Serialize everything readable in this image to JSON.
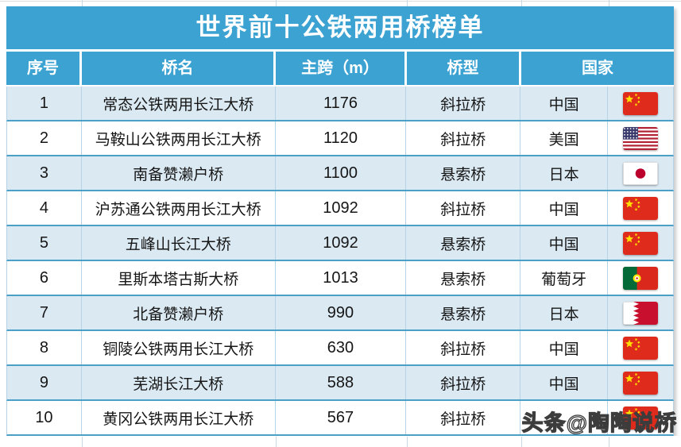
{
  "chart_data": {
    "type": "table",
    "title": "世界前十公铁两用桥榜单",
    "columns": [
      "序号",
      "桥名",
      "主跨（m）",
      "桥型",
      "国家"
    ],
    "rows": [
      {
        "rank": 1,
        "name": "常态公铁两用长江大桥",
        "span_m": 1176,
        "bridge_type": "斜拉桥",
        "country": "中国",
        "flag": "china-flag"
      },
      {
        "rank": 2,
        "name": "马鞍山公铁两用长江大桥",
        "span_m": 1120,
        "bridge_type": "斜拉桥",
        "country": "美国",
        "flag": "usa-flag"
      },
      {
        "rank": 3,
        "name": "南备赞濑户桥",
        "span_m": 1100,
        "bridge_type": "悬索桥",
        "country": "日本",
        "flag": "japan-flag"
      },
      {
        "rank": 4,
        "name": "沪苏通公铁两用长江大桥",
        "span_m": 1092,
        "bridge_type": "斜拉桥",
        "country": "中国",
        "flag": "china-flag"
      },
      {
        "rank": 5,
        "name": "五峰山长江大桥",
        "span_m": 1092,
        "bridge_type": "悬索桥",
        "country": "中国",
        "flag": "china-flag"
      },
      {
        "rank": 6,
        "name": "里斯本塔古斯大桥",
        "span_m": 1013,
        "bridge_type": "悬索桥",
        "country": "葡萄牙",
        "flag": "portugal-flag"
      },
      {
        "rank": 7,
        "name": "北备赞濑户桥",
        "span_m": 990,
        "bridge_type": "悬索桥",
        "country": "日本",
        "flag": "bahrain-flag"
      },
      {
        "rank": 8,
        "name": "铜陵公铁两用长江大桥",
        "span_m": 630,
        "bridge_type": "斜拉桥",
        "country": "中国",
        "flag": "china-flag"
      },
      {
        "rank": 9,
        "name": "芜湖长江大桥",
        "span_m": 588,
        "bridge_type": "斜拉桥",
        "country": "中国",
        "flag": "china-flag"
      },
      {
        "rank": 10,
        "name": "黄冈公铁两用长江大桥",
        "span_m": 567,
        "bridge_type": "斜拉桥",
        "country": "",
        "flag": "china-flag"
      }
    ],
    "legend": "none",
    "grid": "on"
  },
  "watermark": {
    "text": "头条@陶陶说桥"
  },
  "colors": {
    "header_blue": "#3BA2D2",
    "row_alt": "#DBE9F3",
    "divider": "#4AA0C6",
    "cell_line": "#B7D3E8",
    "china_red": "#DF2B1C",
    "watermark_fill": "#FFFFFF"
  }
}
